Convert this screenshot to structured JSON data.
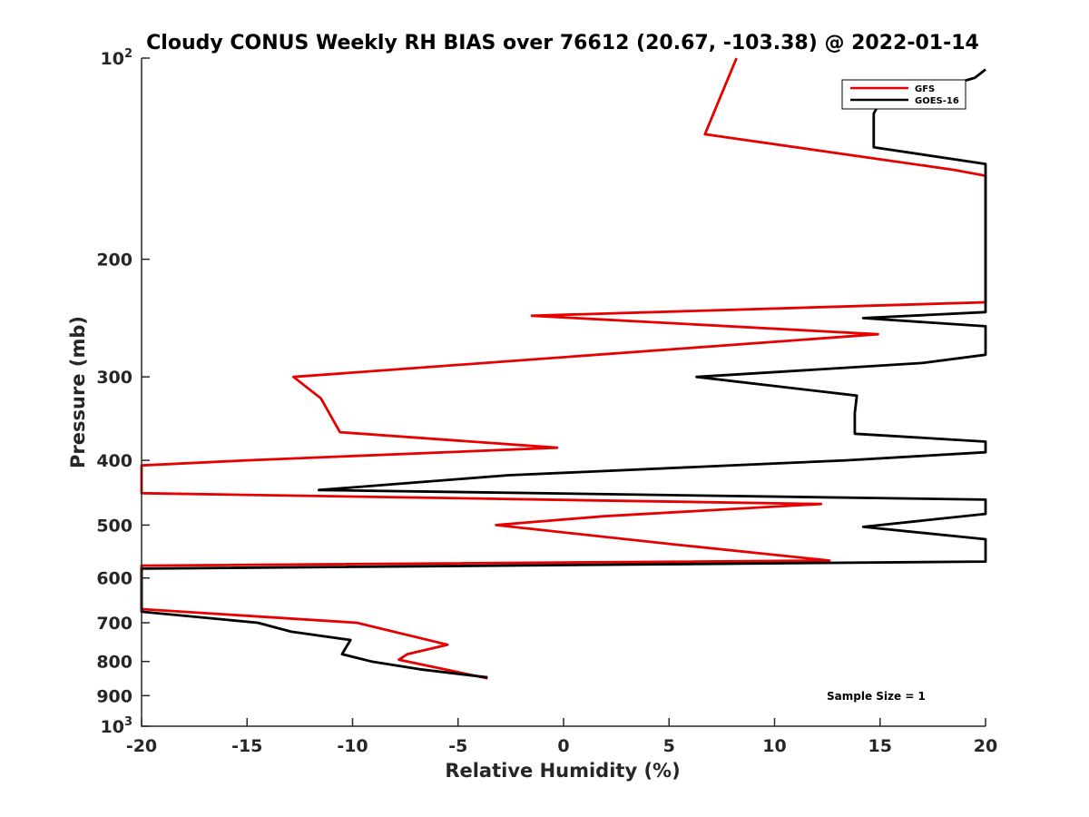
{
  "chart_data": {
    "type": "line",
    "title": "Cloudy CONUS Weekly RH BIAS over 76612 (20.67, -103.38) @ 2022-01-14",
    "xlabel": "Relative Humidity (%)",
    "ylabel": "Pressure (mb)",
    "xlim": [
      -20,
      20
    ],
    "ylim": [
      100,
      1000
    ],
    "y_scale": "log",
    "y_reversed": true,
    "grid": false,
    "legend_position": "top-right",
    "annotation": "Sample Size = 1",
    "x_ticks": [
      -20,
      -15,
      -10,
      -5,
      0,
      5,
      10,
      15,
      20
    ],
    "x_tick_labels": [
      "-20",
      "-15",
      "-10",
      "-5",
      "0",
      "5",
      "10",
      "15",
      "20"
    ],
    "y_ticks": [
      {
        "value": 100,
        "label": "10",
        "exponent": "2"
      },
      {
        "value": 200,
        "label": "200"
      },
      {
        "value": 300,
        "label": "300"
      },
      {
        "value": 400,
        "label": "400"
      },
      {
        "value": 500,
        "label": "500"
      },
      {
        "value": 600,
        "label": "600"
      },
      {
        "value": 700,
        "label": "700"
      },
      {
        "value": 800,
        "label": "800"
      },
      {
        "value": 900,
        "label": "900"
      },
      {
        "value": 1000,
        "label": "10",
        "exponent": "3"
      }
    ],
    "series": [
      {
        "name": "GFS",
        "color": "#e60000",
        "points": [
          [
            8.2,
            100
          ],
          [
            7.4,
            115
          ],
          [
            6.7,
            130
          ],
          [
            18.5,
            147
          ],
          [
            20,
            150
          ],
          [
            20,
            232
          ],
          [
            -1.5,
            243
          ],
          [
            14.9,
            259
          ],
          [
            -12.8,
            300
          ],
          [
            -11.5,
            323
          ],
          [
            -10.6,
            363
          ],
          [
            -0.3,
            383
          ],
          [
            -15,
            400
          ],
          [
            -20,
            407
          ],
          [
            -20,
            448
          ],
          [
            12.2,
            465
          ],
          [
            1.9,
            485
          ],
          [
            -3.2,
            500
          ],
          [
            5.4,
            535
          ],
          [
            12.6,
            565
          ],
          [
            -20,
            575
          ],
          [
            -20,
            668
          ],
          [
            -9.8,
            700
          ],
          [
            -5.5,
            755
          ],
          [
            -7.4,
            780
          ],
          [
            -7.8,
            795
          ],
          [
            -3.6,
            848
          ]
        ]
      },
      {
        "name": "GOES-16",
        "color": "#000000",
        "points": [
          [
            20,
            104
          ],
          [
            19.5,
            107
          ],
          [
            14.9,
            118
          ],
          [
            14.7,
            121
          ],
          [
            14.7,
            136
          ],
          [
            20,
            144
          ],
          [
            20,
            240
          ],
          [
            14.2,
            245
          ],
          [
            20,
            252
          ],
          [
            20,
            278
          ],
          [
            17,
            286
          ],
          [
            6.3,
            300
          ],
          [
            13.9,
            320
          ],
          [
            13.8,
            340
          ],
          [
            13.8,
            365
          ],
          [
            20,
            375
          ],
          [
            20,
            389
          ],
          [
            13.4,
            400
          ],
          [
            -2.6,
            421
          ],
          [
            -11.6,
            443
          ],
          [
            20,
            458
          ],
          [
            20,
            481
          ],
          [
            14.2,
            503
          ],
          [
            20,
            525
          ],
          [
            20,
            567
          ],
          [
            -20,
            581
          ],
          [
            -20,
            674
          ],
          [
            -14.5,
            700
          ],
          [
            -12.9,
            722
          ],
          [
            -10.1,
            743
          ],
          [
            -10.5,
            780
          ],
          [
            -9.1,
            800
          ],
          [
            -6.8,
            822
          ],
          [
            -3.6,
            845
          ]
        ]
      }
    ]
  }
}
